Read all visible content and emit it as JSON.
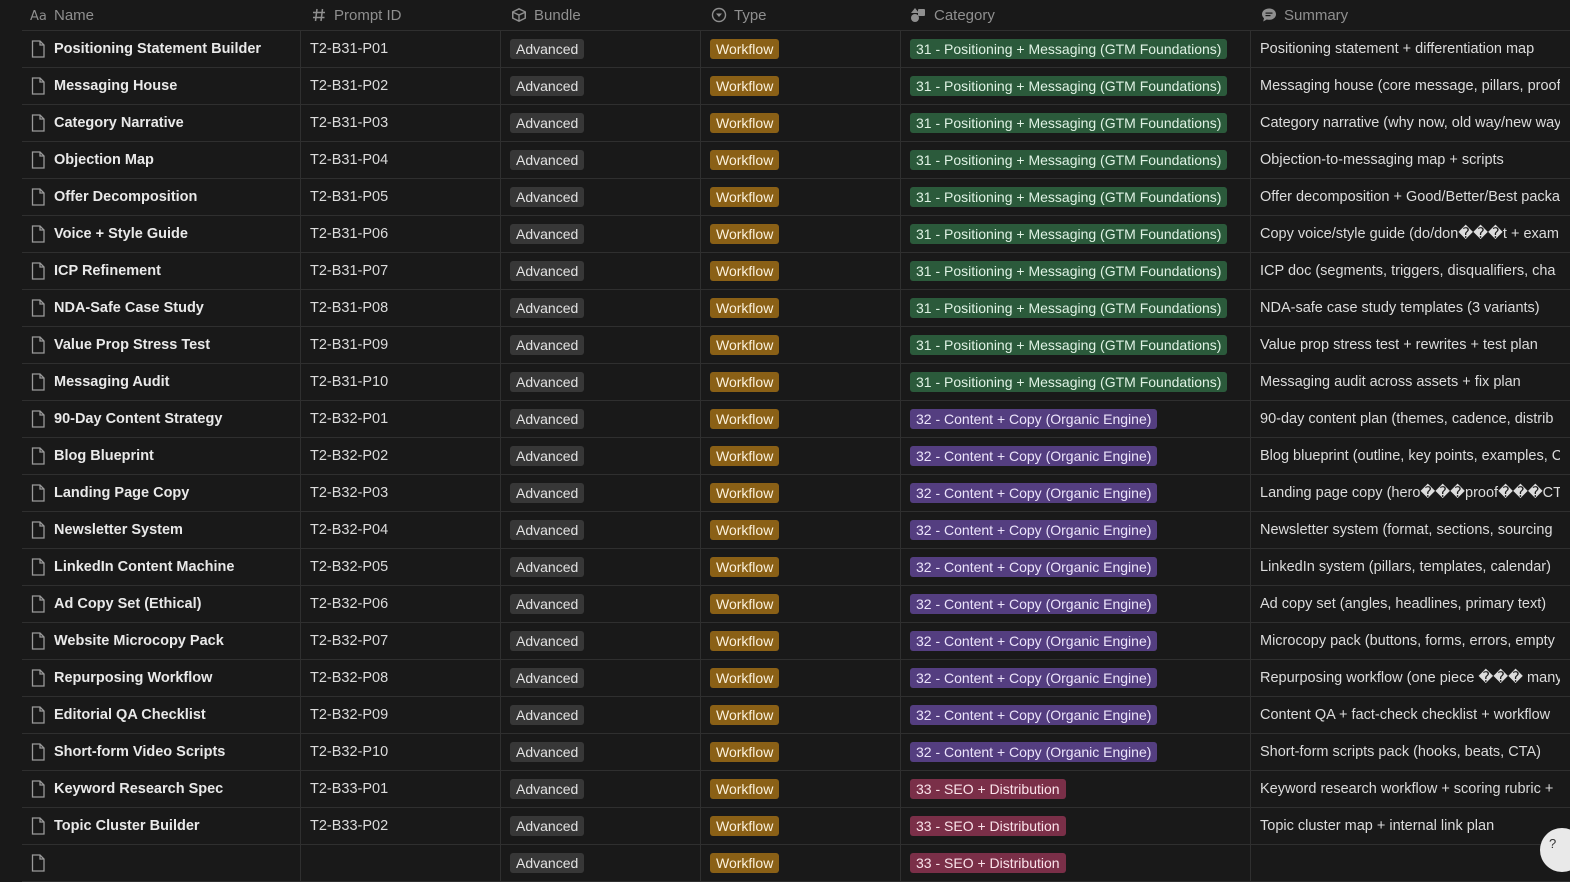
{
  "headers": {
    "name": "Name",
    "prompt_id": "Prompt ID",
    "bundle": "Bundle",
    "type": "Type",
    "category": "Category",
    "summary": "Summary"
  },
  "header_icons": {
    "name": "text-type-icon",
    "prompt_id": "number-icon",
    "bundle": "box-icon",
    "type": "select-icon",
    "category": "multi-select-icon",
    "summary": "text-bubble-icon"
  },
  "colors": {
    "background": "#191919",
    "type_workflow": "#8a6016",
    "category_31": "#2b5a3b",
    "category_32": "#543e80",
    "category_33": "#7a2f48"
  },
  "rows": [
    {
      "name": "Positioning Statement Builder",
      "pid": "T2-B31-P01",
      "bundle": "Advanced",
      "type": "Workflow",
      "category": "31 - Positioning + Messaging (GTM Foundations)",
      "cat_id": "31",
      "summary": "Positioning statement + differentiation map"
    },
    {
      "name": "Messaging House",
      "pid": "T2-B31-P02",
      "bundle": "Advanced",
      "type": "Workflow",
      "category": "31 - Positioning + Messaging (GTM Foundations)",
      "cat_id": "31",
      "summary": "Messaging house (core message, pillars, proof"
    },
    {
      "name": "Category Narrative",
      "pid": "T2-B31-P03",
      "bundle": "Advanced",
      "type": "Workflow",
      "category": "31 - Positioning + Messaging (GTM Foundations)",
      "cat_id": "31",
      "summary": "Category narrative (why now, old way/new way"
    },
    {
      "name": "Objection Map",
      "pid": "T2-B31-P04",
      "bundle": "Advanced",
      "type": "Workflow",
      "category": "31 - Positioning + Messaging (GTM Foundations)",
      "cat_id": "31",
      "summary": "Objection-to-messaging map + scripts"
    },
    {
      "name": "Offer Decomposition",
      "pid": "T2-B31-P05",
      "bundle": "Advanced",
      "type": "Workflow",
      "category": "31 - Positioning + Messaging (GTM Foundations)",
      "cat_id": "31",
      "summary": "Offer decomposition + Good/Better/Best packa"
    },
    {
      "name": "Voice + Style Guide",
      "pid": "T2-B31-P06",
      "bundle": "Advanced",
      "type": "Workflow",
      "category": "31 - Positioning + Messaging (GTM Foundations)",
      "cat_id": "31",
      "summary": "Copy voice/style guide (do/don���t + exam"
    },
    {
      "name": "ICP Refinement",
      "pid": "T2-B31-P07",
      "bundle": "Advanced",
      "type": "Workflow",
      "category": "31 - Positioning + Messaging (GTM Foundations)",
      "cat_id": "31",
      "summary": "ICP doc (segments, triggers, disqualifiers, cha"
    },
    {
      "name": "NDA-Safe Case Study",
      "pid": "T2-B31-P08",
      "bundle": "Advanced",
      "type": "Workflow",
      "category": "31 - Positioning + Messaging (GTM Foundations)",
      "cat_id": "31",
      "summary": "NDA-safe case study templates (3 variants)"
    },
    {
      "name": "Value Prop Stress Test",
      "pid": "T2-B31-P09",
      "bundle": "Advanced",
      "type": "Workflow",
      "category": "31 - Positioning + Messaging (GTM Foundations)",
      "cat_id": "31",
      "summary": "Value prop stress test + rewrites + test plan"
    },
    {
      "name": "Messaging Audit",
      "pid": "T2-B31-P10",
      "bundle": "Advanced",
      "type": "Workflow",
      "category": "31 - Positioning + Messaging (GTM Foundations)",
      "cat_id": "31",
      "summary": "Messaging audit across assets + fix plan"
    },
    {
      "name": "90-Day Content Strategy",
      "pid": "T2-B32-P01",
      "bundle": "Advanced",
      "type": "Workflow",
      "category": "32 - Content + Copy (Organic Engine)",
      "cat_id": "32",
      "summary": "90-day content plan (themes, cadence, distrib"
    },
    {
      "name": "Blog Blueprint",
      "pid": "T2-B32-P02",
      "bundle": "Advanced",
      "type": "Workflow",
      "category": "32 - Content + Copy (Organic Engine)",
      "cat_id": "32",
      "summary": "Blog blueprint (outline, key points, examples, C"
    },
    {
      "name": "Landing Page Copy",
      "pid": "T2-B32-P03",
      "bundle": "Advanced",
      "type": "Workflow",
      "category": "32 - Content + Copy (Organic Engine)",
      "cat_id": "32",
      "summary": "Landing page copy (hero���proof���CT"
    },
    {
      "name": "Newsletter System",
      "pid": "T2-B32-P04",
      "bundle": "Advanced",
      "type": "Workflow",
      "category": "32 - Content + Copy (Organic Engine)",
      "cat_id": "32",
      "summary": "Newsletter system (format, sections, sourcing"
    },
    {
      "name": "LinkedIn Content Machine",
      "pid": "T2-B32-P05",
      "bundle": "Advanced",
      "type": "Workflow",
      "category": "32 - Content + Copy (Organic Engine)",
      "cat_id": "32",
      "summary": "LinkedIn system (pillars, templates, calendar)"
    },
    {
      "name": "Ad Copy Set (Ethical)",
      "pid": "T2-B32-P06",
      "bundle": "Advanced",
      "type": "Workflow",
      "category": "32 - Content + Copy (Organic Engine)",
      "cat_id": "32",
      "summary": "Ad copy set (angles, headlines, primary text)"
    },
    {
      "name": "Website Microcopy Pack",
      "pid": "T2-B32-P07",
      "bundle": "Advanced",
      "type": "Workflow",
      "category": "32 - Content + Copy (Organic Engine)",
      "cat_id": "32",
      "summary": "Microcopy pack (buttons, forms, errors, empty"
    },
    {
      "name": "Repurposing Workflow",
      "pid": "T2-B32-P08",
      "bundle": "Advanced",
      "type": "Workflow",
      "category": "32 - Content + Copy (Organic Engine)",
      "cat_id": "32",
      "summary": "Repurposing workflow (one piece ��� many"
    },
    {
      "name": "Editorial QA Checklist",
      "pid": "T2-B32-P09",
      "bundle": "Advanced",
      "type": "Workflow",
      "category": "32 - Content + Copy (Organic Engine)",
      "cat_id": "32",
      "summary": "Content QA + fact-check checklist + workflow"
    },
    {
      "name": "Short-form Video Scripts",
      "pid": "T2-B32-P10",
      "bundle": "Advanced",
      "type": "Workflow",
      "category": "32 - Content + Copy (Organic Engine)",
      "cat_id": "32",
      "summary": "Short-form scripts pack (hooks, beats, CTA)"
    },
    {
      "name": "Keyword Research Spec",
      "pid": "T2-B33-P01",
      "bundle": "Advanced",
      "type": "Workflow",
      "category": "33 - SEO + Distribution",
      "cat_id": "33",
      "summary": "Keyword research workflow + scoring rubric +"
    },
    {
      "name": "Topic Cluster Builder",
      "pid": "T2-B33-P02",
      "bundle": "Advanced",
      "type": "Workflow",
      "category": "33 - SEO + Distribution",
      "cat_id": "33",
      "summary": "Topic cluster map + internal link plan"
    },
    {
      "name": "",
      "pid": "",
      "bundle": "Advanced",
      "type": "Workflow",
      "category": "33 - SEO + Distribution",
      "cat_id": "33",
      "summary": ""
    }
  ]
}
